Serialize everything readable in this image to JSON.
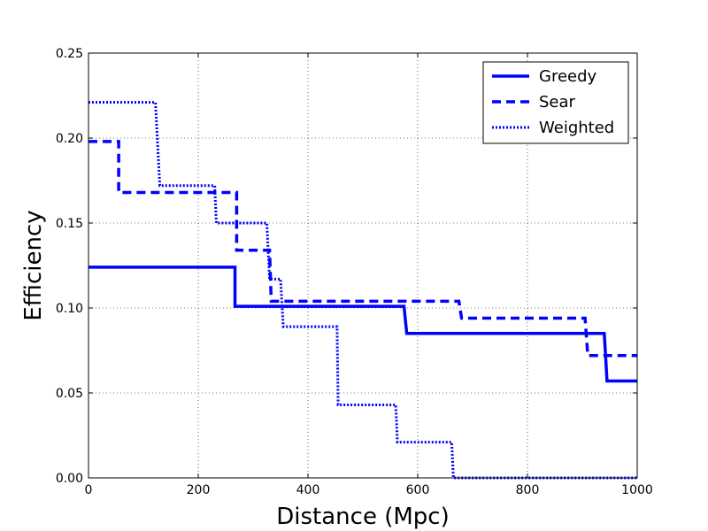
{
  "chart_data": {
    "type": "line",
    "xlabel": "Distance (Mpc)",
    "ylabel": "Efficiency",
    "xlim": [
      0,
      1000
    ],
    "ylim": [
      0,
      0.25
    ],
    "xticks": [
      0,
      200,
      400,
      600,
      800,
      1000
    ],
    "xtick_labels": [
      "0",
      "200",
      "400",
      "600",
      "800",
      "1000"
    ],
    "yticks": [
      0,
      0.05,
      0.1,
      0.15,
      0.2,
      0.25
    ],
    "ytick_labels": [
      "0.00",
      "0.05",
      "0.10",
      "0.15",
      "0.20",
      "0.25"
    ],
    "grid": true,
    "legend_position": "top-right",
    "color": "#0000ff",
    "series": [
      {
        "name": "Greedy",
        "style": "solid",
        "x": [
          0,
          267,
          267,
          575,
          580,
          940,
          945,
          1000
        ],
        "y": [
          0.124,
          0.124,
          0.101,
          0.101,
          0.085,
          0.085,
          0.057,
          0.057
        ]
      },
      {
        "name": "Sear",
        "style": "dashed",
        "x": [
          0,
          55,
          55,
          270,
          270,
          330,
          333,
          675,
          680,
          905,
          910,
          1000
        ],
        "y": [
          0.198,
          0.198,
          0.168,
          0.168,
          0.134,
          0.134,
          0.104,
          0.104,
          0.094,
          0.094,
          0.072,
          0.072
        ]
      },
      {
        "name": "Weighted",
        "style": "dotted",
        "x": [
          0,
          122,
          130,
          230,
          233,
          325,
          330,
          350,
          355,
          453,
          455,
          560,
          563,
          662,
          665,
          1000
        ],
        "y": [
          0.221,
          0.221,
          0.172,
          0.172,
          0.15,
          0.15,
          0.117,
          0.117,
          0.089,
          0.089,
          0.043,
          0.043,
          0.021,
          0.021,
          0.0,
          0.0
        ]
      }
    ]
  }
}
